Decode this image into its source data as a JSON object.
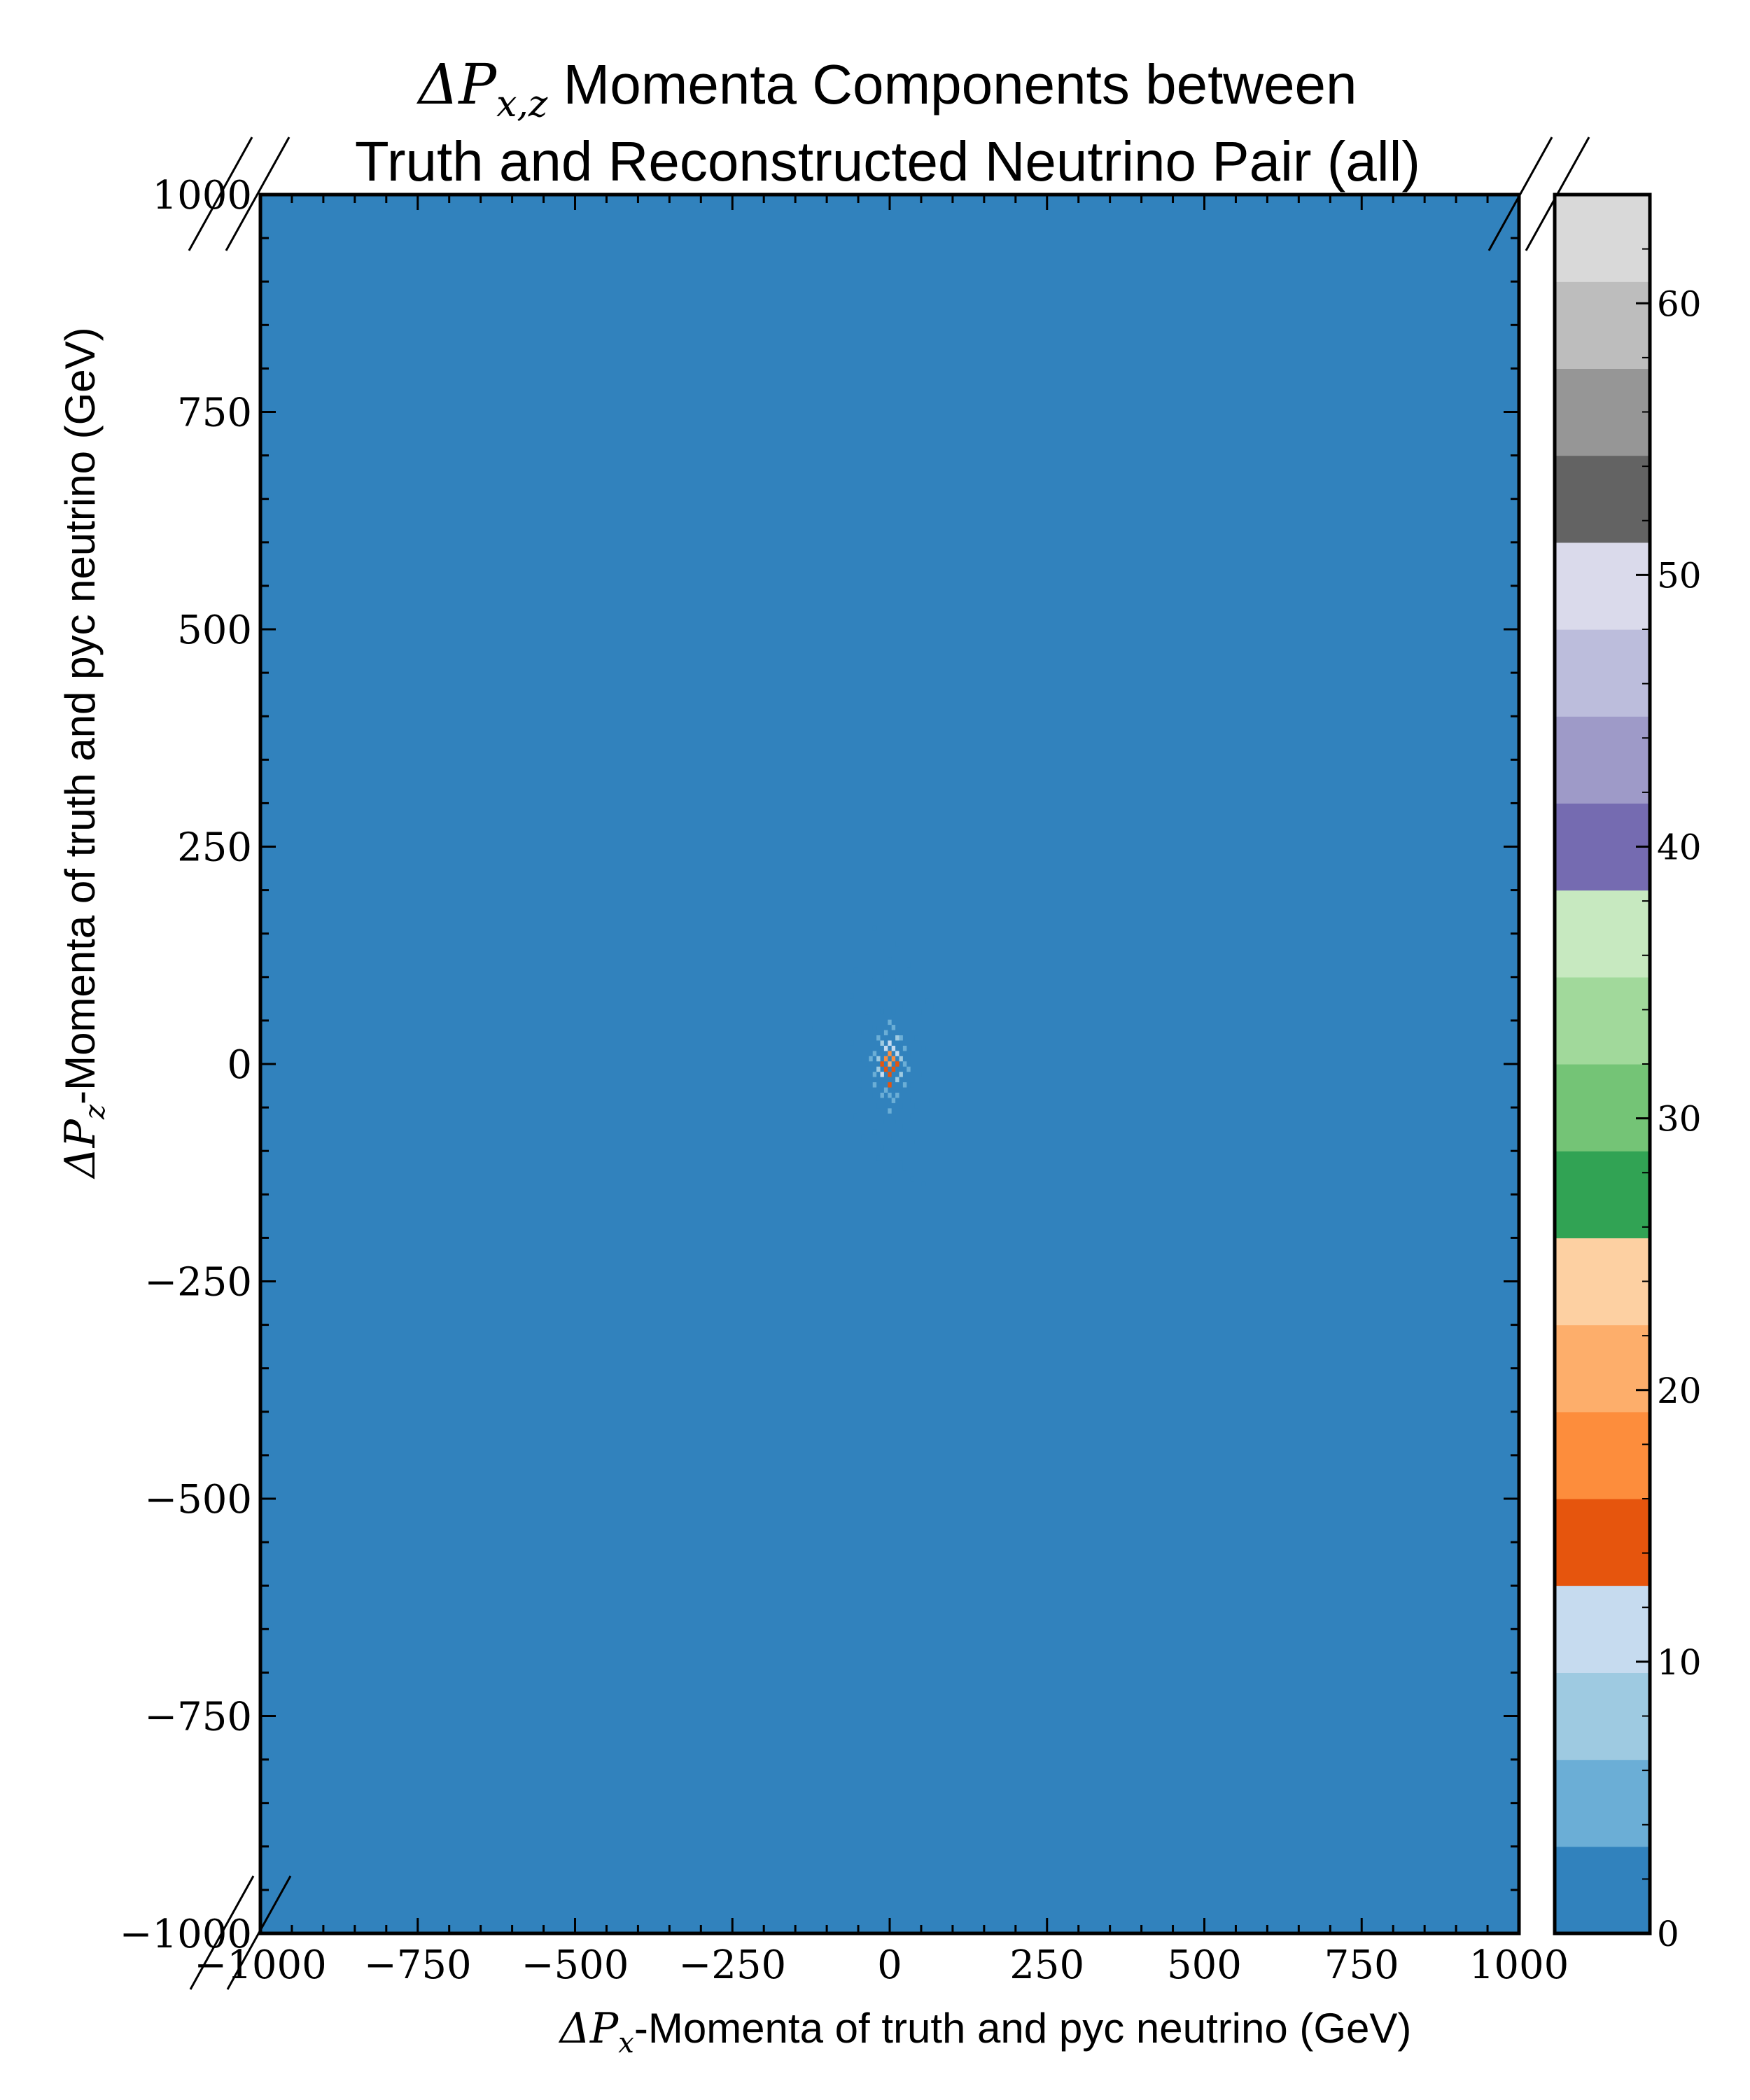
{
  "chart_data": {
    "type": "heatmap",
    "title": {
      "symbol": "ΔP",
      "subscript": "x,z",
      "line1_rest": " Momenta Components between",
      "line2": "Truth and Reconstructed Neutrino Pair (all)"
    },
    "xlabel": {
      "symbol": "ΔP",
      "subscript": "x",
      "rest": "-Momenta of truth and pyc neutrino (GeV)"
    },
    "ylabel": {
      "symbol": "ΔP",
      "subscript": "z",
      "rest": "-Momenta of truth and pyc neutrino (GeV)"
    },
    "xlim": [
      -1000,
      1000
    ],
    "ylim": [
      -1000,
      1000
    ],
    "x_ticks": [
      -1000,
      -750,
      -500,
      -250,
      0,
      250,
      500,
      750,
      1000
    ],
    "x_tick_labels": [
      "−1000",
      "−750",
      "−500",
      "−250",
      "0",
      "250",
      "500",
      "750",
      "1000"
    ],
    "y_ticks": [
      -1000,
      -750,
      -500,
      -250,
      0,
      250,
      500,
      750,
      1000
    ],
    "y_tick_labels": [
      "−1000",
      "−750",
      "−500",
      "−250",
      "0",
      "250",
      "500",
      "750",
      "1000"
    ],
    "background_value": 0,
    "colorbar": {
      "min": 0,
      "max": 64,
      "ticks": [
        0,
        10,
        20,
        30,
        40,
        50,
        60
      ],
      "tick_labels": [
        "0",
        "10",
        "20",
        "30",
        "40",
        "50",
        "60"
      ],
      "colors": [
        "#3182bd",
        "#6baed6",
        "#9ecae1",
        "#c6dbef",
        "#e6550d",
        "#fd8d3c",
        "#fdae6b",
        "#fdd0a2",
        "#31a354",
        "#74c476",
        "#a1d99b",
        "#c7e9c0",
        "#756bb1",
        "#9e9ac8",
        "#bcbddc",
        "#dadaeb",
        "#636363",
        "#969696",
        "#bdbdbd",
        "#d9d9d9"
      ]
    },
    "cells": [
      {
        "x": 0,
        "y": 0,
        "value": 22
      },
      {
        "x": -6,
        "y": 6,
        "value": 18
      },
      {
        "x": 6,
        "y": 6,
        "value": 17
      },
      {
        "x": 0,
        "y": 12,
        "value": 16
      },
      {
        "x": -6,
        "y": -6,
        "value": 15
      },
      {
        "x": 6,
        "y": -6,
        "value": 14
      },
      {
        "x": 0,
        "y": -12,
        "value": 13
      },
      {
        "x": -12,
        "y": 0,
        "value": 15
      },
      {
        "x": 12,
        "y": 0,
        "value": 14
      },
      {
        "x": 0,
        "y": -24,
        "value": 15
      },
      {
        "x": -6,
        "y": 18,
        "value": 12
      },
      {
        "x": 6,
        "y": 18,
        "value": 11
      },
      {
        "x": -12,
        "y": -12,
        "value": 10
      },
      {
        "x": 12,
        "y": 12,
        "value": 10
      },
      {
        "x": 0,
        "y": 24,
        "value": 10
      },
      {
        "x": 12,
        "y": -18,
        "value": 9
      },
      {
        "x": -18,
        "y": 6,
        "value": 8
      },
      {
        "x": 18,
        "y": 6,
        "value": 8
      },
      {
        "x": -12,
        "y": 24,
        "value": 7
      },
      {
        "x": 12,
        "y": 30,
        "value": 7
      },
      {
        "x": -18,
        "y": -6,
        "value": 7
      },
      {
        "x": 18,
        "y": -12,
        "value": 7
      },
      {
        "x": 0,
        "y": -36,
        "value": 6
      },
      {
        "x": -6,
        "y": -30,
        "value": 6
      },
      {
        "x": 6,
        "y": -42,
        "value": 6
      },
      {
        "x": -24,
        "y": 12,
        "value": 5
      },
      {
        "x": 24,
        "y": 0,
        "value": 5
      },
      {
        "x": -24,
        "y": -12,
        "value": 5
      },
      {
        "x": 24,
        "y": 18,
        "value": 5
      },
      {
        "x": -6,
        "y": 36,
        "value": 5
      },
      {
        "x": 6,
        "y": 42,
        "value": 5
      },
      {
        "x": 18,
        "y": 30,
        "value": 5
      },
      {
        "x": -18,
        "y": 30,
        "value": 4
      },
      {
        "x": 12,
        "y": -36,
        "value": 4
      },
      {
        "x": -12,
        "y": -36,
        "value": 4
      },
      {
        "x": -30,
        "y": 6,
        "value": 4
      },
      {
        "x": 30,
        "y": -6,
        "value": 4
      },
      {
        "x": 24,
        "y": -24,
        "value": 4
      },
      {
        "x": -24,
        "y": -24,
        "value": 4
      },
      {
        "x": 0,
        "y": 48,
        "value": 4
      },
      {
        "x": 0,
        "y": -54,
        "value": 4
      },
      {
        "x": 18,
        "y": -48,
        "value": 3
      },
      {
        "x": -18,
        "y": -48,
        "value": 3
      },
      {
        "x": 24,
        "y": 36,
        "value": 3
      },
      {
        "x": -24,
        "y": 42,
        "value": 3
      },
      {
        "x": -36,
        "y": 18,
        "value": 3
      },
      {
        "x": 36,
        "y": 12,
        "value": 3
      },
      {
        "x": -36,
        "y": -6,
        "value": 3
      },
      {
        "x": 36,
        "y": -24,
        "value": 3
      },
      {
        "x": 6,
        "y": 60,
        "value": 3
      },
      {
        "x": -6,
        "y": -66,
        "value": 3
      },
      {
        "x": 12,
        "y": -66,
        "value": 3
      },
      {
        "x": -12,
        "y": 60,
        "value": 3
      },
      {
        "x": 30,
        "y": -42,
        "value": 3
      },
      {
        "x": -30,
        "y": -36,
        "value": 3
      },
      {
        "x": 42,
        "y": 30,
        "value": 2
      },
      {
        "x": -42,
        "y": 36,
        "value": 2
      },
      {
        "x": -42,
        "y": -18,
        "value": 2
      },
      {
        "x": 48,
        "y": -12,
        "value": 2
      },
      {
        "x": 18,
        "y": 66,
        "value": 2
      },
      {
        "x": -18,
        "y": 72,
        "value": 2
      },
      {
        "x": 24,
        "y": -72,
        "value": 2
      },
      {
        "x": -24,
        "y": -78,
        "value": 2
      },
      {
        "x": 0,
        "y": -84,
        "value": 2
      },
      {
        "x": 6,
        "y": 84,
        "value": 2
      },
      {
        "x": -48,
        "y": 6,
        "value": 2
      },
      {
        "x": 54,
        "y": 18,
        "value": 2
      },
      {
        "x": 36,
        "y": -60,
        "value": 2
      },
      {
        "x": -36,
        "y": 60,
        "value": 2
      },
      {
        "x": 42,
        "y": -48,
        "value": 2
      },
      {
        "x": -12,
        "y": -96,
        "value": 2
      },
      {
        "x": 12,
        "y": 96,
        "value": 1
      },
      {
        "x": -30,
        "y": 96,
        "value": 1
      },
      {
        "x": 0,
        "y": 120,
        "value": 1
      },
      {
        "x": -60,
        "y": 78,
        "value": 1
      },
      {
        "x": 60,
        "y": 72,
        "value": 1
      },
      {
        "x": -18,
        "y": -108,
        "value": 1
      },
      {
        "x": 18,
        "y": -114,
        "value": 1
      },
      {
        "x": 42,
        "y": -90,
        "value": 1
      },
      {
        "x": 24,
        "y": -120,
        "value": 1
      },
      {
        "x": 36,
        "y": -132,
        "value": 1
      },
      {
        "x": 54,
        "y": -138,
        "value": 1
      },
      {
        "x": 0,
        "y": -126,
        "value": 1
      },
      {
        "x": -54,
        "y": -60,
        "value": 1
      },
      {
        "x": 66,
        "y": -42,
        "value": 1
      },
      {
        "x": -60,
        "y": 24,
        "value": 1
      },
      {
        "x": -126,
        "y": 42,
        "value": 1
      },
      {
        "x": -24,
        "y": 156,
        "value": 1
      },
      {
        "x": -54,
        "y": 108,
        "value": 1
      },
      {
        "x": 48,
        "y": 60,
        "value": 1
      },
      {
        "x": 30,
        "y": 114,
        "value": 1
      },
      {
        "x": -42,
        "y": -84,
        "value": 1
      },
      {
        "x": 72,
        "y": 66,
        "value": 1
      },
      {
        "x": -66,
        "y": -90,
        "value": 1
      },
      {
        "x": 12,
        "y": 138,
        "value": 1
      },
      {
        "x": -6,
        "y": 102,
        "value": 1
      },
      {
        "x": -48,
        "y": -30,
        "value": 1
      }
    ]
  }
}
